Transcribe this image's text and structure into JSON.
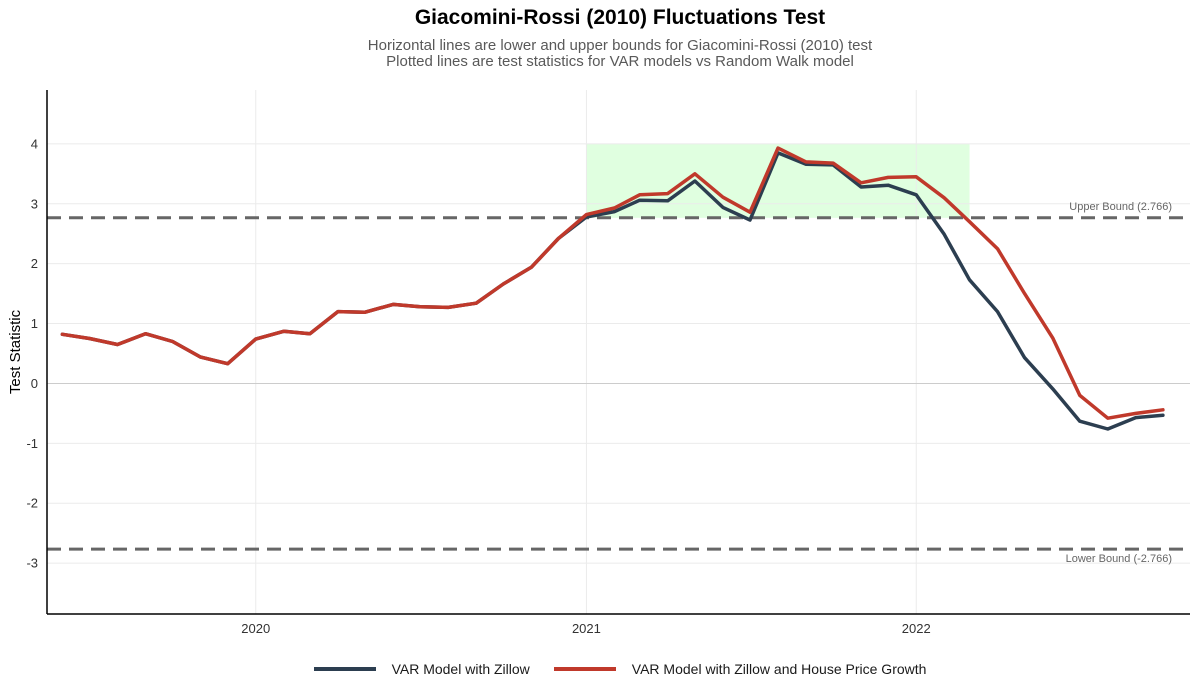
{
  "chart_data": {
    "type": "line",
    "title": "Giacomini-Rossi (2010) Fluctuations Test",
    "subtitle": [
      "Horizontal lines are lower and upper bounds for Giacomini-Rossi (2010) test",
      "Plotted lines are test statistics for VAR models vs Random Walk model"
    ],
    "xlabel": "",
    "ylabel": "Test Statistic",
    "xlim": [
      "2019-05-15",
      "2022-10-31"
    ],
    "ylim": [
      -3.85,
      4.9
    ],
    "x_ticks": [
      "2020-01-01",
      "2021-01-01",
      "2022-01-01"
    ],
    "x_tick_labels": [
      "2020",
      "2021",
      "2022"
    ],
    "y_ticks": [
      -3,
      -2,
      -1,
      0,
      1,
      2,
      3,
      4
    ],
    "y_tick_labels": [
      "-3",
      "-2",
      "-1",
      "0",
      "1",
      "2",
      "3",
      "4"
    ],
    "grid": true,
    "legend_position": "bottom",
    "x": [
      "2019-06-01",
      "2019-07-01",
      "2019-08-01",
      "2019-09-01",
      "2019-10-01",
      "2019-11-01",
      "2019-12-01",
      "2020-01-01",
      "2020-02-01",
      "2020-03-01",
      "2020-04-01",
      "2020-05-01",
      "2020-06-01",
      "2020-07-01",
      "2020-08-01",
      "2020-09-01",
      "2020-10-01",
      "2020-11-01",
      "2020-12-01",
      "2021-01-01",
      "2021-02-01",
      "2021-03-01",
      "2021-04-01",
      "2021-05-01",
      "2021-06-01",
      "2021-07-01",
      "2021-08-01",
      "2021-09-01",
      "2021-10-01",
      "2021-11-01",
      "2021-12-01",
      "2022-01-01",
      "2022-02-01",
      "2022-03-01",
      "2022-04-01",
      "2022-05-01",
      "2022-06-01",
      "2022-07-01",
      "2022-08-01",
      "2022-09-01",
      "2022-10-01"
    ],
    "series": [
      {
        "name": "VAR Model with Zillow",
        "color": "#2c3e50",
        "values": [
          0.82,
          0.75,
          0.65,
          0.83,
          0.7,
          0.44,
          0.33,
          0.74,
          0.87,
          0.83,
          1.2,
          1.19,
          1.32,
          1.28,
          1.27,
          1.34,
          1.66,
          1.94,
          2.42,
          2.78,
          2.87,
          3.06,
          3.05,
          3.38,
          2.94,
          2.73,
          3.85,
          3.66,
          3.65,
          3.28,
          3.31,
          3.15,
          2.49,
          1.73,
          1.2,
          0.43,
          -0.09,
          -0.63,
          -0.76,
          -0.57,
          -0.53
        ]
      },
      {
        "name": "VAR Model with Zillow and House Price Growth",
        "color": "#c0392b",
        "values": [
          0.82,
          0.75,
          0.65,
          0.83,
          0.7,
          0.44,
          0.33,
          0.74,
          0.87,
          0.83,
          1.2,
          1.19,
          1.32,
          1.28,
          1.27,
          1.34,
          1.66,
          1.94,
          2.42,
          2.82,
          2.93,
          3.15,
          3.17,
          3.5,
          3.11,
          2.86,
          3.93,
          3.7,
          3.68,
          3.35,
          3.44,
          3.45,
          3.1,
          2.7,
          2.25,
          1.5,
          0.76,
          -0.2,
          -0.58,
          -0.5,
          -0.44
        ]
      }
    ],
    "reference_lines": [
      {
        "y": 2.766,
        "label": "Upper Bound (2.766)",
        "color": "#666666",
        "dash": true
      },
      {
        "y": -2.766,
        "label": "Lower Bound (-2.766)",
        "color": "#666666",
        "dash": true
      },
      {
        "y": 0,
        "label": "",
        "color": "#cccccc",
        "dash": false
      }
    ],
    "highlight_region": {
      "x_start": "2021-01-01",
      "x_end": "2022-03-01",
      "y_start": 2.766,
      "y_end": 4.0,
      "color": "#ccffcc"
    }
  }
}
